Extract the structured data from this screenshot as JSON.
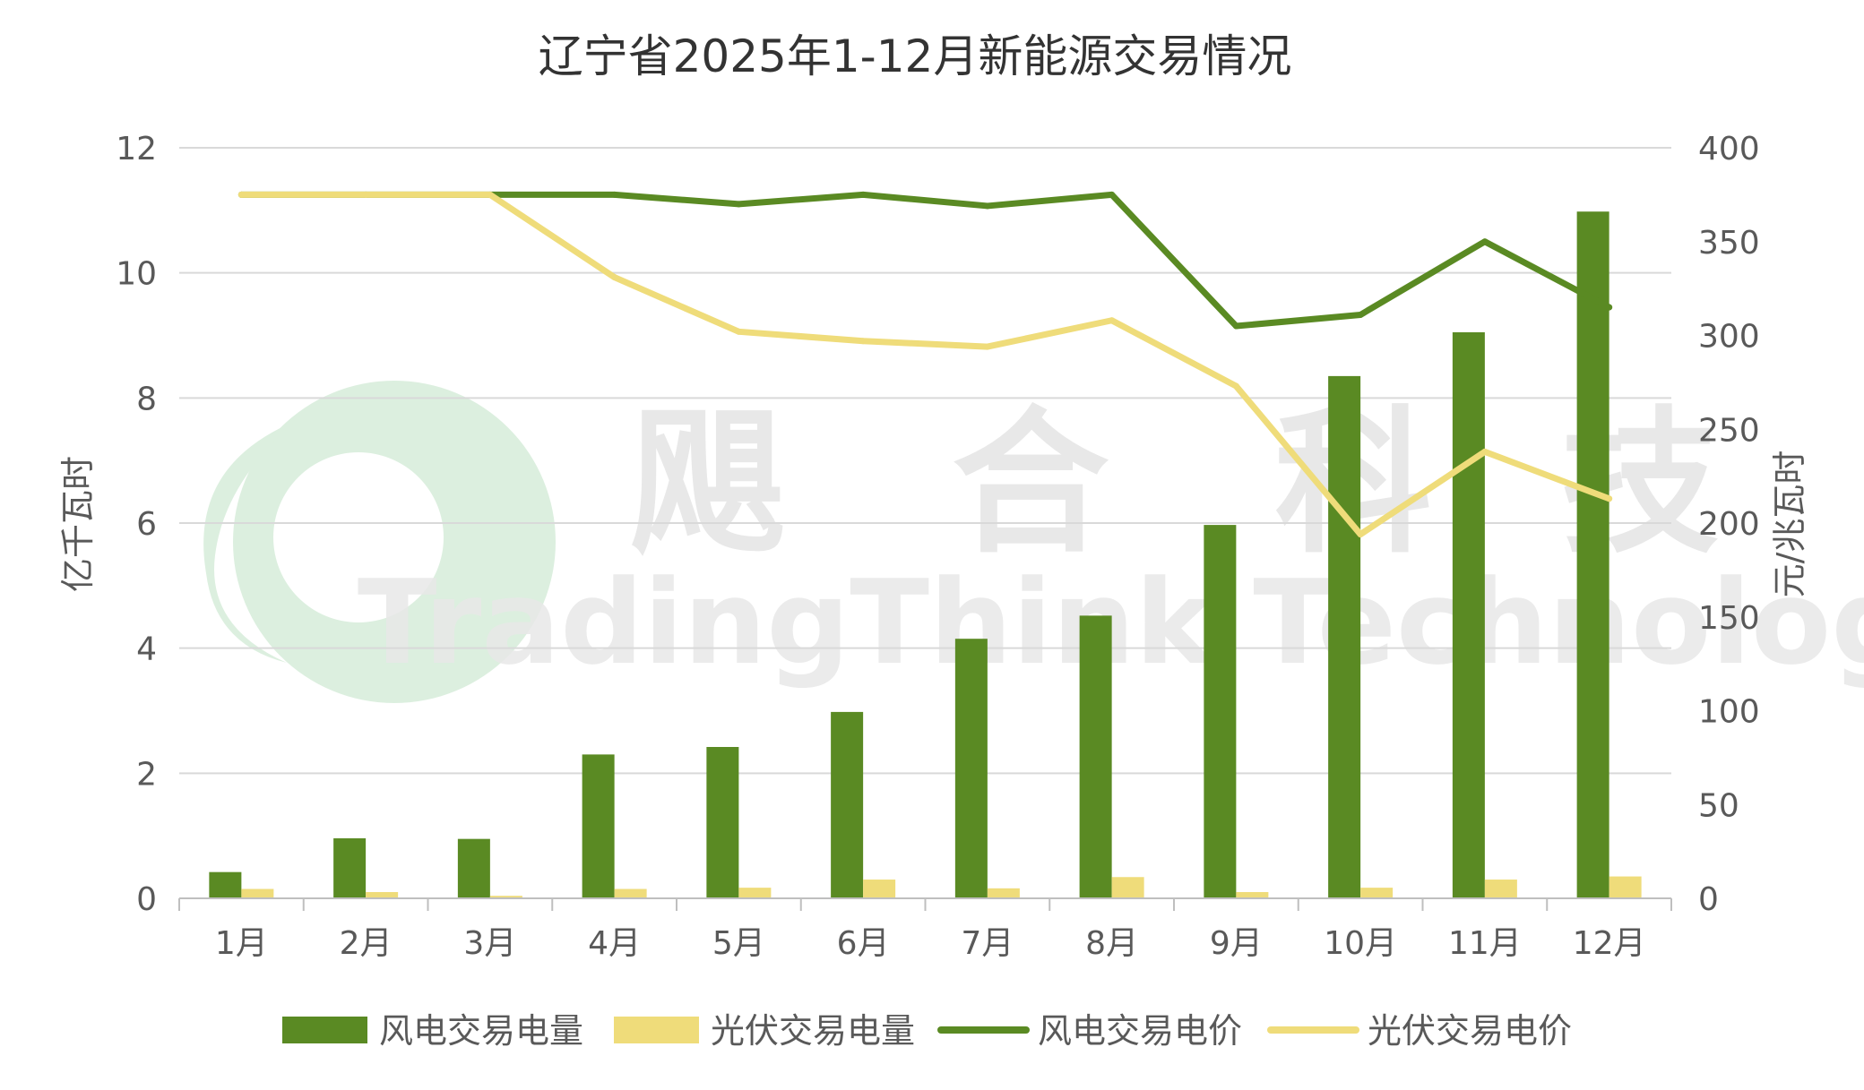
{
  "chart_data": {
    "type": "bar",
    "title": "辽宁省2025年1-12月新能源交易情况",
    "categories": [
      "1月",
      "2月",
      "3月",
      "4月",
      "5月",
      "6月",
      "7月",
      "8月",
      "9月",
      "10月",
      "11月",
      "12月"
    ],
    "ylabel": "亿千瓦时",
    "y2label": "元/兆瓦时",
    "ylim": [
      0,
      12
    ],
    "y2lim": [
      0,
      400
    ],
    "yticks": [
      "0",
      "2",
      "4",
      "6",
      "8",
      "10",
      "12"
    ],
    "y2ticks": [
      "0",
      "50",
      "100",
      "150",
      "200",
      "250",
      "300",
      "350",
      "400"
    ],
    "grid": true,
    "legend_position": "bottom",
    "series": [
      {
        "name": "风电交易电量",
        "type": "bar",
        "axis": "left",
        "color": "#5A8A23",
        "values": [
          0.42,
          0.96,
          0.95,
          2.3,
          2.42,
          2.98,
          4.15,
          4.52,
          5.97,
          8.35,
          9.05,
          10.98
        ]
      },
      {
        "name": "光伏交易电量",
        "type": "bar",
        "axis": "left",
        "color": "#EFDC7A",
        "values": [
          0.15,
          0.1,
          0.04,
          0.15,
          0.17,
          0.3,
          0.16,
          0.34,
          0.1,
          0.17,
          0.3,
          0.35
        ]
      },
      {
        "name": "风电交易电价",
        "type": "line",
        "axis": "right",
        "color": "#5A8A23",
        "values": [
          375,
          375,
          375,
          375,
          370,
          375,
          369,
          375,
          305,
          311,
          350,
          315
        ]
      },
      {
        "name": "光伏交易电价",
        "type": "line",
        "axis": "right",
        "color": "#EFDC7A",
        "values": [
          375,
          375,
          375,
          331,
          302,
          297,
          294,
          308,
          273,
          194,
          238,
          213
        ]
      }
    ]
  },
  "watermark": {
    "name": "飓合科技",
    "name_en": "TradingThink Technology",
    "logo_color": "#DCEFDF",
    "text_color": "#E8E8E8"
  }
}
